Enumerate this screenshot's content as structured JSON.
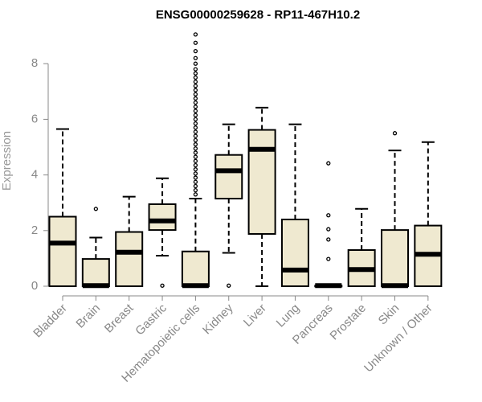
{
  "chart_data": {
    "type": "boxplot",
    "title": "ENSG00000259628 - RP11-467H10.2",
    "xlabel": "",
    "ylabel": "Expression",
    "ylim": [
      0,
      9
    ],
    "yticks": [
      0,
      2,
      4,
      6,
      8
    ],
    "box_fill": "#efe9d0",
    "median_color": "#000000",
    "axis_color": "#888888",
    "categories": [
      "Bladder",
      "Brain",
      "Breast",
      "Gastric",
      "Hematopoietic cells",
      "Kidney",
      "Liver",
      "Lung",
      "Pancreas",
      "Prostate",
      "Skin",
      "Unknown / Other"
    ],
    "boxes": [
      {
        "name": "Bladder",
        "whisker_low": 0,
        "q1": 0,
        "median": 1.55,
        "q3": 2.5,
        "whisker_high": 5.65,
        "outliers": []
      },
      {
        "name": "Brain",
        "whisker_low": 0,
        "q1": 0,
        "median": 0.02,
        "q3": 0.98,
        "whisker_high": 1.75,
        "outliers": [
          2.78
        ]
      },
      {
        "name": "Breast",
        "whisker_low": 0,
        "q1": 0,
        "median": 1.22,
        "q3": 1.95,
        "whisker_high": 3.22,
        "outliers": []
      },
      {
        "name": "Gastric",
        "whisker_low": 1.1,
        "q1": 2.02,
        "median": 2.35,
        "q3": 2.95,
        "whisker_high": 3.88,
        "outliers": [
          0.02
        ]
      },
      {
        "name": "Hematopoietic cells",
        "whisker_low": 0,
        "q1": 0,
        "median": 0.02,
        "q3": 1.25,
        "whisker_high": 3.15,
        "outliers": [
          3.3,
          3.45,
          3.6,
          3.75,
          3.9,
          4.05,
          4.2,
          4.35,
          4.5,
          4.65,
          4.8,
          4.95,
          5.1,
          5.25,
          5.4,
          5.55,
          5.7,
          5.85,
          6.0,
          6.15,
          6.3,
          6.45,
          6.6,
          6.75,
          6.9,
          7.05,
          7.2,
          7.35,
          7.5,
          7.65,
          7.8,
          8.0,
          8.2,
          8.45,
          8.75,
          9.05
        ]
      },
      {
        "name": "Kidney",
        "whisker_low": 1.2,
        "q1": 3.15,
        "median": 4.15,
        "q3": 4.72,
        "whisker_high": 5.82,
        "outliers": [
          0.02
        ]
      },
      {
        "name": "Liver",
        "whisker_low": 0,
        "q1": 1.88,
        "median": 4.92,
        "q3": 5.62,
        "whisker_high": 6.42,
        "outliers": []
      },
      {
        "name": "Lung",
        "whisker_low": 0,
        "q1": 0,
        "median": 0.58,
        "q3": 2.4,
        "whisker_high": 5.82,
        "outliers": []
      },
      {
        "name": "Pancreas",
        "whisker_low": 0,
        "q1": 0,
        "median": 0.02,
        "q3": 0.02,
        "whisker_high": 0.02,
        "outliers": [
          0.98,
          1.68,
          2.05,
          2.55,
          4.42
        ]
      },
      {
        "name": "Prostate",
        "whisker_low": 0,
        "q1": 0,
        "median": 0.6,
        "q3": 1.3,
        "whisker_high": 2.78,
        "outliers": []
      },
      {
        "name": "Skin",
        "whisker_low": 0,
        "q1": 0,
        "median": 0.02,
        "q3": 2.02,
        "whisker_high": 4.88,
        "outliers": [
          5.5
        ]
      },
      {
        "name": "Unknown / Other",
        "whisker_low": 0,
        "q1": 0,
        "median": 1.15,
        "q3": 2.18,
        "whisker_high": 5.18,
        "outliers": []
      }
    ]
  }
}
